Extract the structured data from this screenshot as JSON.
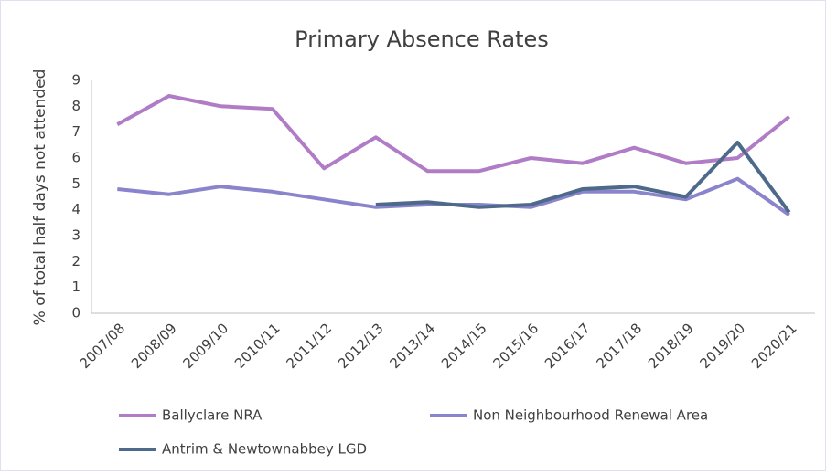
{
  "chart_data": {
    "type": "line",
    "title": "Primary Absence Rates",
    "y_label": "% of total half days not attended",
    "categories": [
      "2007/08",
      "2008/09",
      "2009/10",
      "2010/11",
      "2011/12",
      "2012/13",
      "2013/14",
      "2014/15",
      "2015/16",
      "2016/17",
      "2017/18",
      "2018/19",
      "2019/20",
      "2020/21"
    ],
    "series": [
      {
        "name": "Ballyclare NRA",
        "color": "#b07cc6",
        "values": [
          7.3,
          8.4,
          8.0,
          7.9,
          5.6,
          6.8,
          5.5,
          5.5,
          6.0,
          5.8,
          6.4,
          5.8,
          6.0,
          7.6
        ]
      },
      {
        "name": "Non Neighbourhood Renewal Area",
        "color": "#8a84cc",
        "values": [
          4.8,
          4.6,
          4.9,
          4.7,
          4.4,
          4.1,
          4.2,
          4.2,
          4.1,
          4.7,
          4.7,
          4.4,
          5.2,
          3.8
        ]
      },
      {
        "name": "Antrim & Newtownabbey LGD",
        "color": "#4e6a8a",
        "values": [
          null,
          null,
          null,
          null,
          null,
          4.2,
          4.3,
          4.1,
          4.2,
          4.8,
          4.9,
          4.5,
          6.6,
          3.9
        ]
      }
    ],
    "ylim": [
      0,
      9
    ],
    "yticks": [
      0,
      1,
      2,
      3,
      4,
      5,
      6,
      7,
      8,
      9
    ],
    "grid": false
  }
}
